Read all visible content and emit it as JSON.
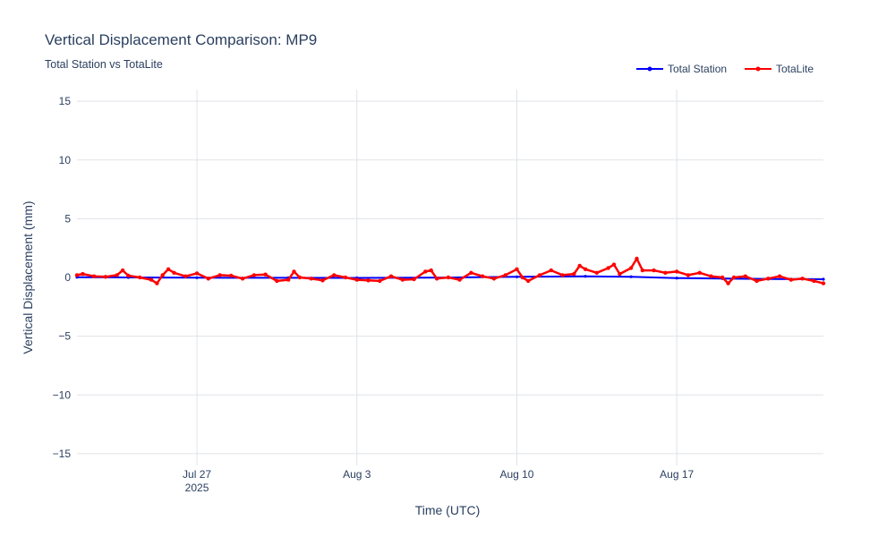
{
  "chart_data": {
    "type": "line",
    "title": "Vertical Displacement Comparison: MP9",
    "subtitle": "Total Station vs TotaLite",
    "xlabel": "Time (UTC)",
    "ylabel": "Vertical Displacement (mm)",
    "xlim": [
      "2025-07-21T18:00",
      "2025-08-23T10:00"
    ],
    "ylim": [
      -16,
      16
    ],
    "x_ticks": [
      {
        "date": "2025-07-27",
        "label": "Jul 27",
        "sublabel": "2025"
      },
      {
        "date": "2025-08-03",
        "label": "Aug 3",
        "sublabel": ""
      },
      {
        "date": "2025-08-10",
        "label": "Aug 10",
        "sublabel": ""
      },
      {
        "date": "2025-08-17",
        "label": "Aug 17",
        "sublabel": ""
      }
    ],
    "y_ticks": [
      {
        "value": 15,
        "label": "15"
      },
      {
        "value": 10,
        "label": "10"
      },
      {
        "value": 5,
        "label": "5"
      },
      {
        "value": 0,
        "label": "0"
      },
      {
        "value": -5,
        "label": "−5"
      },
      {
        "value": -10,
        "label": "−10"
      },
      {
        "value": -15,
        "label": "−15"
      }
    ],
    "grid": true,
    "legend_position": "top-right",
    "series": [
      {
        "name": "Total Station",
        "color": "#0000ff",
        "points": [
          [
            "2025-07-21T18:00",
            0.02
          ],
          [
            "2025-07-24T00:00",
            0.0
          ],
          [
            "2025-07-27T00:00",
            -0.02
          ],
          [
            "2025-07-31T00:00",
            -0.03
          ],
          [
            "2025-08-03T00:00",
            -0.04
          ],
          [
            "2025-08-07T00:00",
            -0.01
          ],
          [
            "2025-08-10T00:00",
            0.05
          ],
          [
            "2025-08-13T00:00",
            0.1
          ],
          [
            "2025-08-15T00:00",
            0.06
          ],
          [
            "2025-08-17T00:00",
            -0.05
          ],
          [
            "2025-08-19T00:00",
            -0.1
          ],
          [
            "2025-08-21T00:00",
            -0.13
          ],
          [
            "2025-08-23T10:00",
            -0.15
          ]
        ]
      },
      {
        "name": "TotaLite",
        "color": "#ff0000",
        "points": [
          [
            "2025-07-21T18:00",
            0.2
          ],
          [
            "2025-07-22T00:00",
            0.3
          ],
          [
            "2025-07-22T12:00",
            0.1
          ],
          [
            "2025-07-23T00:00",
            0.05
          ],
          [
            "2025-07-23T12:00",
            0.2
          ],
          [
            "2025-07-23T18:00",
            0.6
          ],
          [
            "2025-07-24T00:00",
            0.15
          ],
          [
            "2025-07-24T12:00",
            0.0
          ],
          [
            "2025-07-25T00:00",
            -0.2
          ],
          [
            "2025-07-25T06:00",
            -0.5
          ],
          [
            "2025-07-25T12:00",
            0.2
          ],
          [
            "2025-07-25T18:00",
            0.7
          ],
          [
            "2025-07-26T00:00",
            0.4
          ],
          [
            "2025-07-26T12:00",
            0.1
          ],
          [
            "2025-07-27T00:00",
            0.35
          ],
          [
            "2025-07-27T12:00",
            -0.1
          ],
          [
            "2025-07-28T00:00",
            0.2
          ],
          [
            "2025-07-28T12:00",
            0.15
          ],
          [
            "2025-07-29T00:00",
            -0.1
          ],
          [
            "2025-07-29T12:00",
            0.2
          ],
          [
            "2025-07-30T00:00",
            0.25
          ],
          [
            "2025-07-30T12:00",
            -0.3
          ],
          [
            "2025-07-31T00:00",
            -0.2
          ],
          [
            "2025-07-31T06:00",
            0.5
          ],
          [
            "2025-07-31T12:00",
            0.0
          ],
          [
            "2025-08-01T00:00",
            -0.1
          ],
          [
            "2025-08-01T12:00",
            -0.25
          ],
          [
            "2025-08-02T00:00",
            0.2
          ],
          [
            "2025-08-02T12:00",
            0.0
          ],
          [
            "2025-08-03T00:00",
            -0.2
          ],
          [
            "2025-08-03T12:00",
            -0.25
          ],
          [
            "2025-08-04T00:00",
            -0.3
          ],
          [
            "2025-08-04T12:00",
            0.1
          ],
          [
            "2025-08-05T00:00",
            -0.2
          ],
          [
            "2025-08-05T12:00",
            -0.15
          ],
          [
            "2025-08-06T00:00",
            0.5
          ],
          [
            "2025-08-06T06:00",
            0.6
          ],
          [
            "2025-08-06T12:00",
            -0.1
          ],
          [
            "2025-08-07T00:00",
            0.0
          ],
          [
            "2025-08-07T12:00",
            -0.2
          ],
          [
            "2025-08-08T00:00",
            0.4
          ],
          [
            "2025-08-08T12:00",
            0.1
          ],
          [
            "2025-08-09T00:00",
            -0.1
          ],
          [
            "2025-08-09T12:00",
            0.2
          ],
          [
            "2025-08-10T00:00",
            0.7
          ],
          [
            "2025-08-10T06:00",
            0.0
          ],
          [
            "2025-08-10T12:00",
            -0.3
          ],
          [
            "2025-08-11T00:00",
            0.2
          ],
          [
            "2025-08-11T12:00",
            0.6
          ],
          [
            "2025-08-12T00:00",
            0.2
          ],
          [
            "2025-08-12T12:00",
            0.3
          ],
          [
            "2025-08-12T18:00",
            1.0
          ],
          [
            "2025-08-13T00:00",
            0.7
          ],
          [
            "2025-08-13T12:00",
            0.4
          ],
          [
            "2025-08-14T00:00",
            0.8
          ],
          [
            "2025-08-14T06:00",
            1.1
          ],
          [
            "2025-08-14T12:00",
            0.3
          ],
          [
            "2025-08-15T00:00",
            0.8
          ],
          [
            "2025-08-15T06:00",
            1.6
          ],
          [
            "2025-08-15T12:00",
            0.6
          ],
          [
            "2025-08-16T00:00",
            0.6
          ],
          [
            "2025-08-16T12:00",
            0.4
          ],
          [
            "2025-08-17T00:00",
            0.5
          ],
          [
            "2025-08-17T12:00",
            0.2
          ],
          [
            "2025-08-18T00:00",
            0.4
          ],
          [
            "2025-08-18T12:00",
            0.1
          ],
          [
            "2025-08-19T00:00",
            0.0
          ],
          [
            "2025-08-19T06:00",
            -0.5
          ],
          [
            "2025-08-19T12:00",
            0.0
          ],
          [
            "2025-08-20T00:00",
            0.1
          ],
          [
            "2025-08-20T12:00",
            -0.3
          ],
          [
            "2025-08-21T00:00",
            -0.1
          ],
          [
            "2025-08-21T12:00",
            0.1
          ],
          [
            "2025-08-22T00:00",
            -0.2
          ],
          [
            "2025-08-22T12:00",
            -0.1
          ],
          [
            "2025-08-23T00:00",
            -0.3
          ],
          [
            "2025-08-23T10:00",
            -0.5
          ]
        ]
      }
    ]
  }
}
